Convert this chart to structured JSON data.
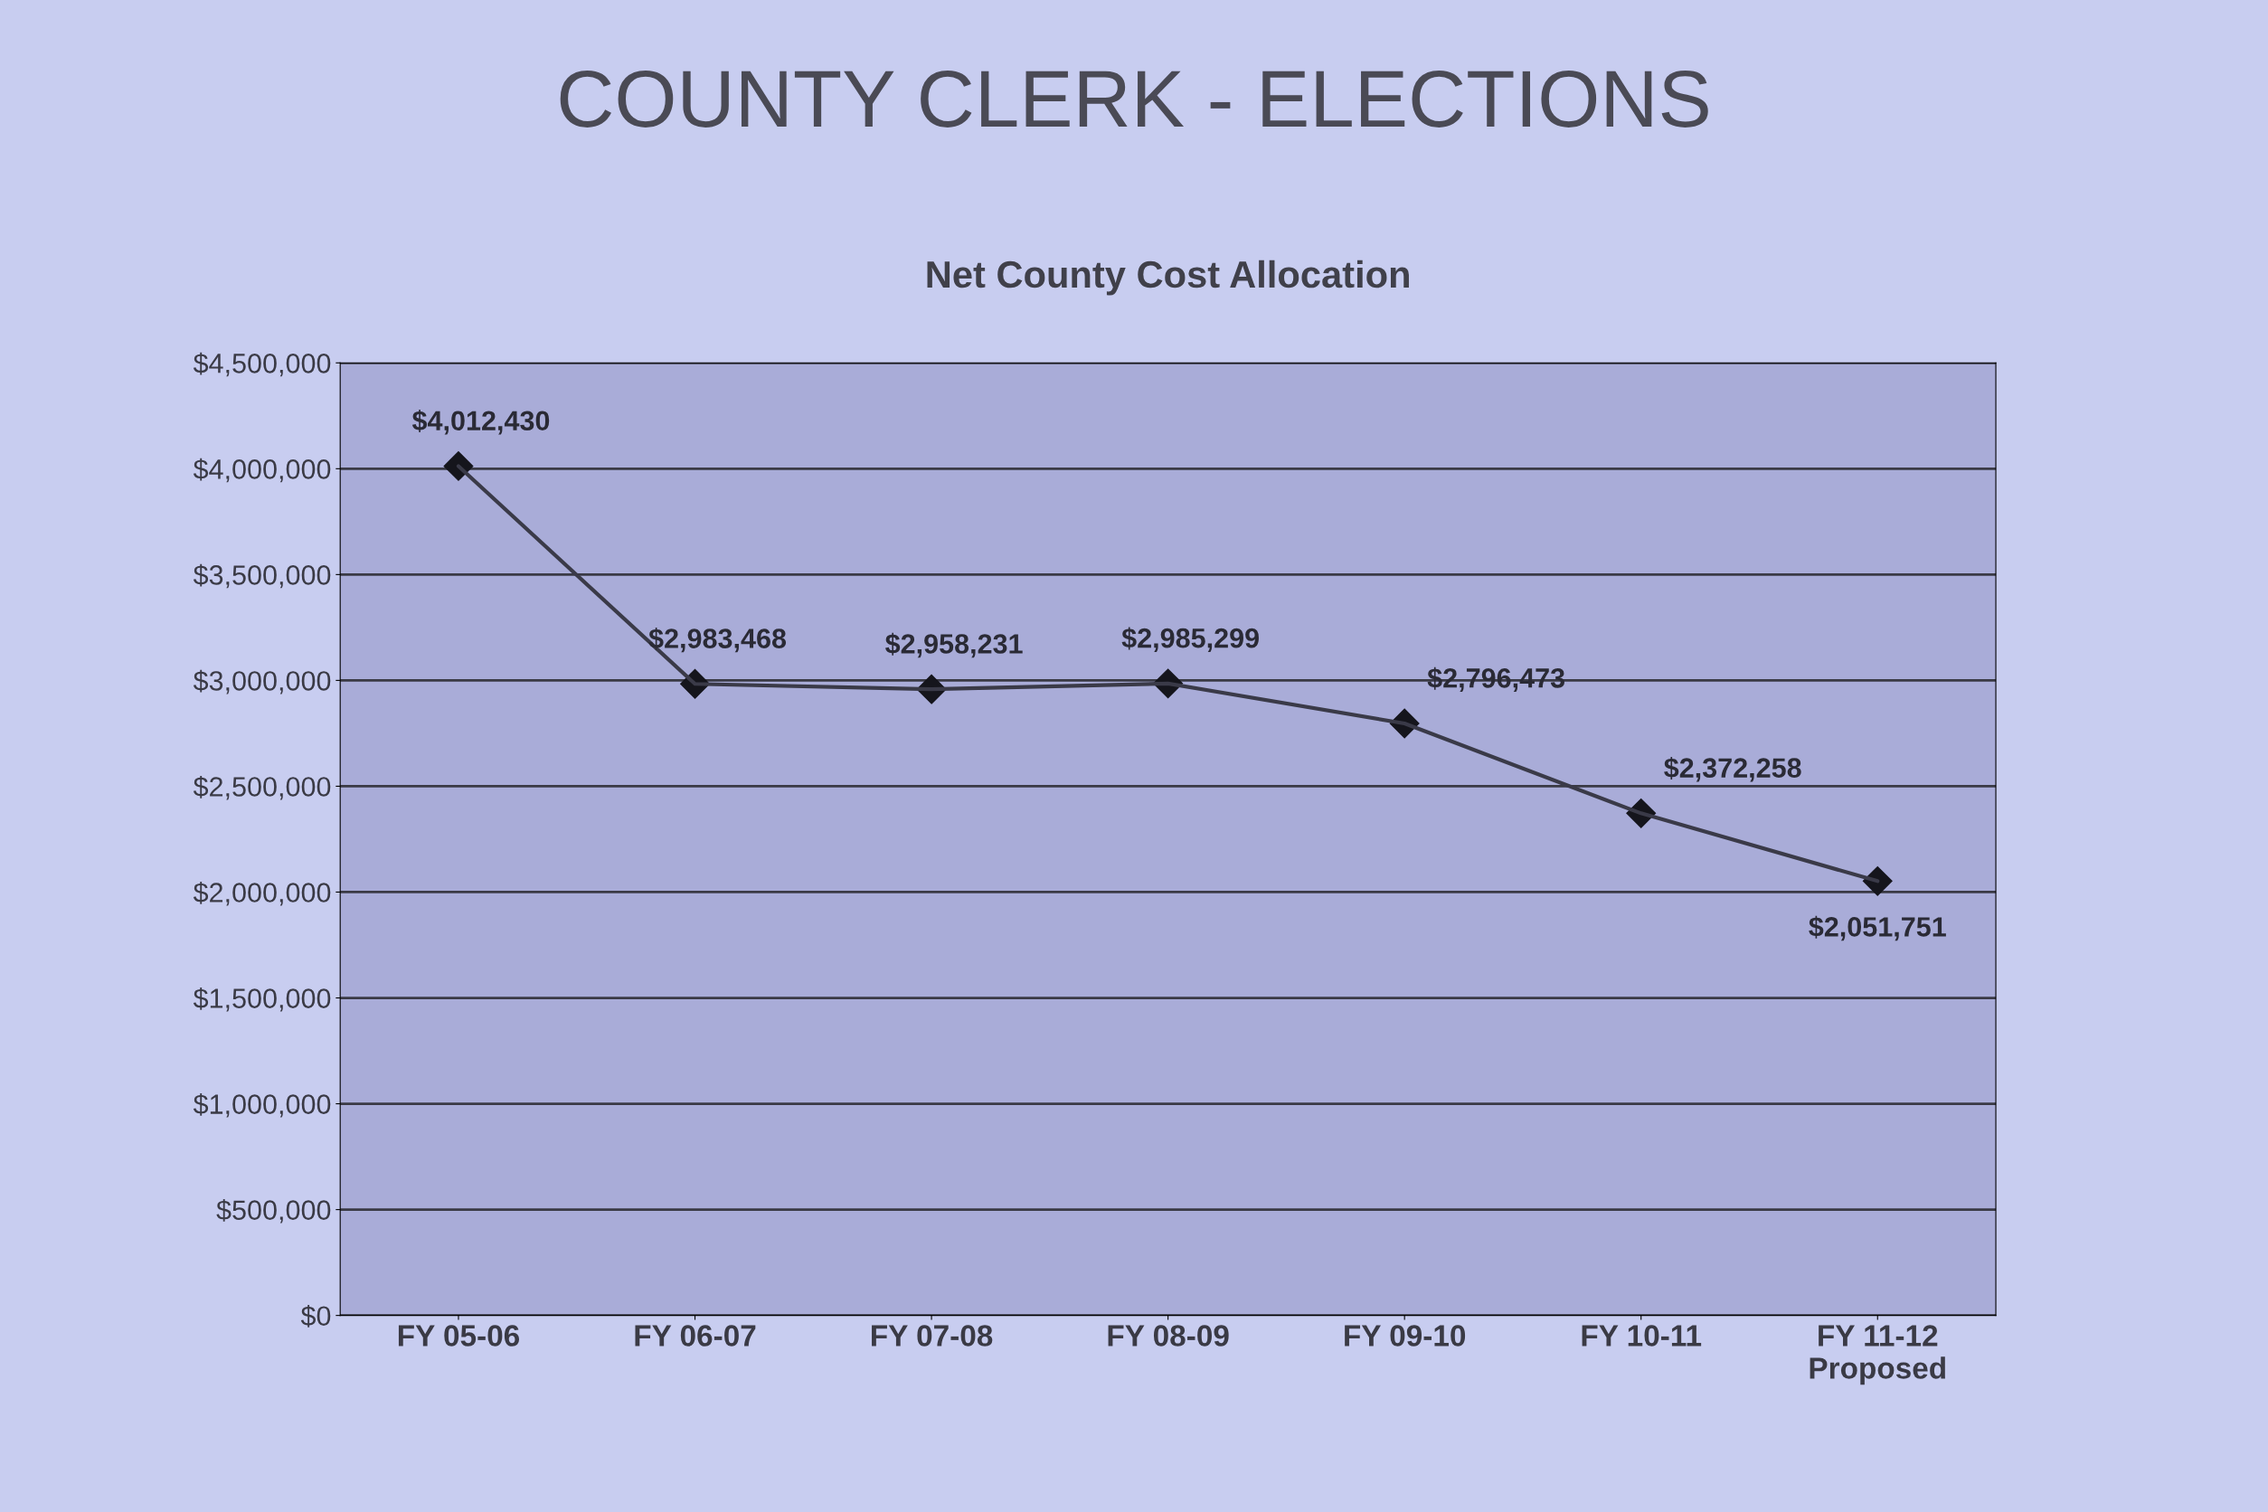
{
  "chart_data": {
    "type": "line",
    "title": "COUNTY CLERK - ELECTIONS",
    "subtitle": "Net County Cost Allocation",
    "categories": [
      "FY 05-06",
      "FY 06-07",
      "FY 07-08",
      "FY 08-09",
      "FY 09-10",
      "FY 10-11",
      "FY 11-12\nProposed"
    ],
    "series": [
      {
        "color": "#3a3a48",
        "values": [
          4012430,
          2983468,
          2958231,
          2985299,
          2796473,
          2372258,
          2051751
        ],
        "value_labels": [
          "$4,012,430",
          "$2,983,468",
          "$2,958,231",
          "$2,985,299",
          "$2,796,473",
          "$2,372,258",
          "$2,051,751"
        ]
      }
    ],
    "ylim": [
      0,
      4500000
    ],
    "yticks": [
      {
        "value": 0,
        "label": "$0"
      },
      {
        "value": 500000,
        "label": "$500,000"
      },
      {
        "value": 1000000,
        "label": "$1,000,000"
      },
      {
        "value": 1500000,
        "label": "$1,500,000"
      },
      {
        "value": 2000000,
        "label": "$2,000,000"
      },
      {
        "value": 2500000,
        "label": "$2,500,000"
      },
      {
        "value": 3000000,
        "label": "$3,000,000"
      },
      {
        "value": 3500000,
        "label": "$3,500,000"
      },
      {
        "value": 4000000,
        "label": "$4,000,000"
      },
      {
        "value": 4500000,
        "label": "$4,500,000"
      }
    ],
    "grid": "y",
    "marker": "diamond",
    "line_style": "solid"
  }
}
